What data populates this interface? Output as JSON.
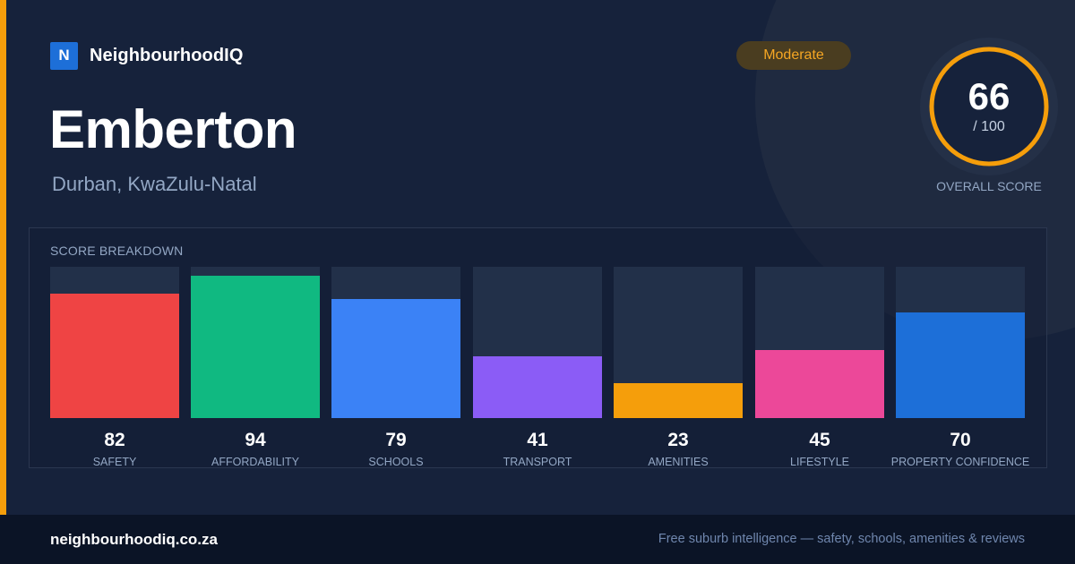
{
  "brand": {
    "logo_letter": "N",
    "name": "NeighbourhoodIQ"
  },
  "suburb": {
    "name": "Emberton",
    "location": "Durban, KwaZulu-Natal"
  },
  "rating_badge": "Moderate",
  "overall": {
    "score": 66,
    "score_text": "66",
    "max_text": "/ 100",
    "label": "OVERALL SCORE"
  },
  "breakdown": {
    "title": "SCORE BREAKDOWN",
    "items": [
      {
        "label": "SAFETY",
        "value": 82,
        "value_text": "82",
        "color": "#ef4444"
      },
      {
        "label": "AFFORDABILITY",
        "value": 94,
        "value_text": "94",
        "color": "#10b981"
      },
      {
        "label": "SCHOOLS",
        "value": 79,
        "value_text": "79",
        "color": "#3b82f6"
      },
      {
        "label": "TRANSPORT",
        "value": 41,
        "value_text": "41",
        "color": "#8b5cf6"
      },
      {
        "label": "AMENITIES",
        "value": 23,
        "value_text": "23",
        "color": "#f59e0b"
      },
      {
        "label": "LIFESTYLE",
        "value": 45,
        "value_text": "45",
        "color": "#ec4899"
      },
      {
        "label": "PROPERTY CONFIDENCE",
        "value": 70,
        "value_text": "70",
        "color": "#1d6fd8"
      }
    ]
  },
  "footer": {
    "url": "neighbourhoodiq.co.za",
    "tagline": "Free suburb intelligence — safety, schools, amenities & reviews"
  },
  "colors": {
    "accent": "#f59e0b",
    "brand_blue": "#1d6fd8",
    "ring": "#f59e0b",
    "ring_track": "#243047"
  }
}
